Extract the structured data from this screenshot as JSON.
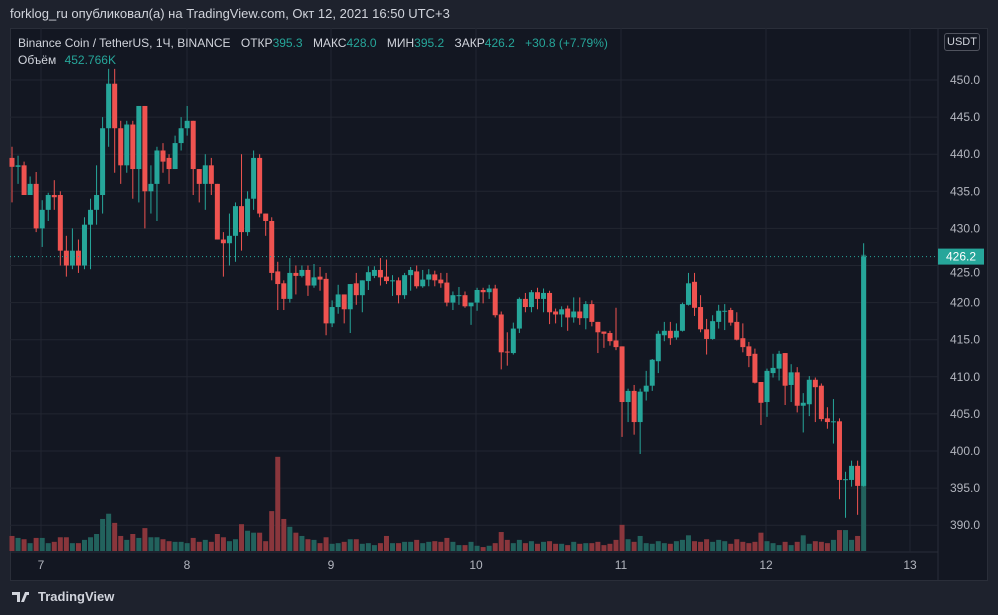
{
  "header": {
    "text": "forklog_ru опубликовал(а) на TradingView.com, Окт 12, 2021 16:50 UTC+3"
  },
  "legend": {
    "symbol": "Binance Coin / TetherUS, 1Ч, BINANCE",
    "open_label": "ОТКР",
    "open": "395.3",
    "high_label": "МАКС",
    "high": "428.0",
    "low_label": "МИН",
    "low": "395.2",
    "close_label": "ЗАКР",
    "close": "426.2",
    "change": "+30.8 (+7.79%)",
    "volume_label": "Объём",
    "volume": "452.766K"
  },
  "currency": "USDT",
  "last_price": "426.2",
  "footer": {
    "brand": "TradingView"
  },
  "colors": {
    "up": "#26a69a",
    "down": "#ef5350",
    "vol_up": "#22625d",
    "vol_down": "#8a363c"
  },
  "chart_data": {
    "type": "candlestick",
    "title": "Binance Coin / TetherUS, 1Ч, BINANCE",
    "interval": "1h",
    "price_ticks": [
      "450.0",
      "445.0",
      "440.0",
      "435.0",
      "430.0",
      "425.0",
      "420.0",
      "415.0",
      "410.0",
      "405.0",
      "400.0",
      "395.0",
      "390.0"
    ],
    "date_ticks": [
      "7",
      "8",
      "9",
      "10",
      "11",
      "12",
      "13"
    ],
    "ylim": [
      387,
      452
    ],
    "volume_unit": "K",
    "ohlc": [
      [
        439.5,
        441,
        433.5,
        438.3
      ],
      [
        438.3,
        439.8,
        436,
        438.5
      ],
      [
        438.5,
        439,
        434.5,
        434.5
      ],
      [
        434.5,
        437,
        434.5,
        436
      ],
      [
        436,
        437.6,
        429.5,
        430
      ],
      [
        430,
        433.8,
        427.5,
        432.5
      ],
      [
        432.5,
        434.8,
        431,
        434.5
      ],
      [
        434.5,
        436.5,
        432.5,
        434.2
      ],
      [
        434.5,
        435,
        425,
        427
      ],
      [
        427,
        429,
        423.5,
        425
      ],
      [
        425,
        430,
        424.5,
        427
      ],
      [
        427,
        428.5,
        424,
        425
      ],
      [
        425,
        431.5,
        424.5,
        430.5
      ],
      [
        430.5,
        434,
        424.5,
        432.5
      ],
      [
        432.5,
        438.5,
        430.5,
        434.5
      ],
      [
        434.5,
        445,
        432,
        443.5
      ],
      [
        443.5,
        451.5,
        441,
        449.5
      ],
      [
        449.5,
        451.5,
        437.5,
        443.5
      ],
      [
        443.5,
        444.5,
        436,
        438.5
      ],
      [
        438.5,
        444.5,
        437.5,
        444
      ],
      [
        444,
        444.5,
        434,
        438
      ],
      [
        438,
        446.5,
        433.5,
        446.5
      ],
      [
        446.5,
        446.5,
        430,
        435
      ],
      [
        435,
        438.5,
        432,
        436
      ],
      [
        436,
        441,
        431,
        440.5
      ],
      [
        440.5,
        441.5,
        437.5,
        439
      ],
      [
        439.5,
        440,
        436,
        438
      ],
      [
        438,
        442.5,
        438,
        441.5
      ],
      [
        441.5,
        445,
        440.5,
        443.5
      ],
      [
        443.5,
        446.5,
        442.5,
        444.5
      ],
      [
        444.5,
        444.5,
        434.5,
        438
      ],
      [
        438,
        438,
        433.5,
        436
      ],
      [
        436,
        440,
        432.5,
        438.5
      ],
      [
        438.5,
        439.5,
        434.5,
        436
      ],
      [
        436,
        436,
        428.5,
        428.5
      ],
      [
        428.5,
        429.5,
        423.5,
        428
      ],
      [
        428,
        432,
        425,
        429
      ],
      [
        429,
        433.5,
        425.5,
        433
      ],
      [
        433,
        440,
        427,
        429.5
      ],
      [
        429.5,
        435,
        429,
        434
      ],
      [
        434,
        440.5,
        432.5,
        439.5
      ],
      [
        439.5,
        440,
        431.5,
        432
      ],
      [
        432,
        432,
        429,
        431
      ],
      [
        431,
        431.5,
        423,
        424
      ],
      [
        424.2,
        425.5,
        419,
        422.5
      ],
      [
        422.6,
        423,
        419,
        420.5
      ],
      [
        420.5,
        426,
        420,
        424
      ],
      [
        424,
        425,
        421.1,
        423.6
      ],
      [
        423.6,
        425,
        423.4,
        424.4
      ],
      [
        424.4,
        425,
        420.9,
        422.3
      ],
      [
        422.3,
        425.2,
        422,
        423.4
      ],
      [
        423.5,
        424.8,
        421.6,
        423.1
      ],
      [
        423.2,
        424,
        415.6,
        417.2
      ],
      [
        417.2,
        420.3,
        416.7,
        419.4
      ],
      [
        419.4,
        422.4,
        418.5,
        421.1
      ],
      [
        421.1,
        421.1,
        417.2,
        419.1
      ],
      [
        419.1,
        422.5,
        415.9,
        422.5
      ],
      [
        422.6,
        424,
        419.7,
        421
      ],
      [
        421,
        423,
        418.7,
        423
      ],
      [
        422.9,
        424.9,
        421.7,
        424.1
      ],
      [
        423.6,
        424.9,
        423.3,
        424.4
      ],
      [
        424.4,
        426,
        422.3,
        423.4
      ],
      [
        423.5,
        425.8,
        422.5,
        422.9
      ],
      [
        423,
        423.7,
        420.9,
        423
      ],
      [
        423,
        423.4,
        419.9,
        421
      ],
      [
        421,
        424,
        420.5,
        423.7
      ],
      [
        423.7,
        424.8,
        421.6,
        424.4
      ],
      [
        424.2,
        425,
        421.9,
        422.2
      ],
      [
        422.2,
        424.4,
        422,
        423.1
      ],
      [
        423.1,
        424.5,
        422.2,
        423.8
      ],
      [
        423.8,
        424.3,
        422.2,
        423
      ],
      [
        423.1,
        424,
        422,
        422.6
      ],
      [
        422.7,
        424,
        419.5,
        420
      ],
      [
        420,
        421.5,
        419,
        421
      ],
      [
        420.9,
        422.1,
        419.7,
        421
      ],
      [
        421,
        421.5,
        419.3,
        419.5
      ],
      [
        419.5,
        420,
        417,
        420
      ],
      [
        420,
        422,
        418.9,
        421.7
      ],
      [
        421.7,
        422,
        419.9,
        421.4
      ],
      [
        421.4,
        422.4,
        420.5,
        421.9
      ],
      [
        421.9,
        422.4,
        418,
        418.3
      ],
      [
        418.4,
        418.8,
        411,
        413.3
      ],
      [
        413.4,
        416,
        411.5,
        413.3
      ],
      [
        413.2,
        417.3,
        413,
        416.5
      ],
      [
        416.5,
        420.7,
        415.9,
        420.5
      ],
      [
        420.5,
        421.3,
        418.7,
        419.4
      ],
      [
        419.4,
        421.7,
        418.7,
        421.4
      ],
      [
        421.4,
        422,
        419.1,
        420.5
      ],
      [
        420.5,
        421.9,
        418.7,
        421.3
      ],
      [
        421.3,
        421.6,
        417.1,
        418.7
      ],
      [
        418.8,
        419.2,
        417.2,
        418.4
      ],
      [
        418.4,
        419.5,
        416.7,
        419.1
      ],
      [
        419.2,
        419.6,
        416.2,
        418
      ],
      [
        418,
        420.7,
        417.3,
        418.8
      ],
      [
        418.8,
        420.7,
        417,
        417.9
      ],
      [
        417.9,
        420.2,
        416.4,
        419.8
      ],
      [
        419.8,
        420.3,
        416.8,
        417.4
      ],
      [
        417.4,
        417.4,
        413.2,
        416
      ],
      [
        416.1,
        416.1,
        413.9,
        415.8
      ],
      [
        415.9,
        416.2,
        414.2,
        414.8
      ],
      [
        414.9,
        419.3,
        413.6,
        414
      ],
      [
        414.1,
        414.1,
        401.9,
        406.6
      ],
      [
        406.6,
        408.4,
        403.9,
        408.1
      ],
      [
        408.1,
        408.9,
        402.2,
        403.9
      ],
      [
        403.9,
        408.4,
        399.6,
        408
      ],
      [
        408,
        410.8,
        406.8,
        408.8
      ],
      [
        408.8,
        412.4,
        408.1,
        412.3
      ],
      [
        412.1,
        416.2,
        410.5,
        415.8
      ],
      [
        415.6,
        417.4,
        414.8,
        416.2
      ],
      [
        416.2,
        417.4,
        414.3,
        415.2
      ],
      [
        415.3,
        417.2,
        415,
        416.2
      ],
      [
        416.2,
        420,
        416.1,
        419.8
      ],
      [
        419.7,
        424,
        419.6,
        422.6
      ],
      [
        422.8,
        424,
        418.2,
        419.3
      ],
      [
        419.4,
        421,
        416,
        416.4
      ],
      [
        416.4,
        417.8,
        413,
        415.1
      ],
      [
        415.1,
        418.3,
        415,
        417.5
      ],
      [
        417.4,
        419.7,
        416.5,
        418.9
      ],
      [
        418.9,
        419.8,
        416.3,
        418.9
      ],
      [
        419,
        419.3,
        416.9,
        417.3
      ],
      [
        417.4,
        418.7,
        414.9,
        415
      ],
      [
        415.2,
        417.2,
        413.3,
        414
      ],
      [
        414.1,
        414.7,
        411.3,
        412.8
      ],
      [
        413.1,
        413.8,
        409.1,
        409.2
      ],
      [
        409.3,
        409.3,
        403.5,
        406.5
      ],
      [
        406.6,
        411.1,
        404.6,
        410.8
      ],
      [
        410.5,
        413.1,
        409.9,
        411.2
      ],
      [
        411.1,
        413.5,
        409.5,
        413.1
      ],
      [
        413.2,
        413.2,
        406.2,
        408.8
      ],
      [
        408.9,
        411.7,
        406.6,
        410.6
      ],
      [
        410.6,
        411.3,
        405.2,
        406.1
      ],
      [
        406.1,
        407.8,
        402.5,
        406.5
      ],
      [
        406.3,
        410.1,
        404.7,
        409.6
      ],
      [
        409.6,
        409.9,
        403.9,
        408.6
      ],
      [
        408.8,
        409.1,
        404,
        404.3
      ],
      [
        404.4,
        405.9,
        403,
        403.9
      ],
      [
        404,
        407,
        401,
        404
      ],
      [
        404,
        404.4,
        393.5,
        396.1
      ],
      [
        396.2,
        397.2,
        391,
        396.2
      ],
      [
        396.1,
        398.7,
        395.2,
        398
      ],
      [
        398,
        398.7,
        391.4,
        395.3
      ],
      [
        395.3,
        428,
        395.2,
        426.2
      ]
    ],
    "volume": [
      23,
      20,
      18,
      12,
      20,
      20,
      12,
      14,
      21,
      21,
      12,
      12,
      17,
      21,
      26,
      49,
      57,
      43,
      23,
      17,
      26,
      20,
      35,
      21,
      21,
      18,
      15,
      14,
      14,
      12,
      20,
      14,
      17,
      14,
      26,
      21,
      15,
      18,
      41,
      31,
      28,
      28,
      15,
      61,
      144,
      49,
      37,
      28,
      23,
      18,
      17,
      12,
      21,
      11,
      12,
      14,
      18,
      18,
      11,
      12,
      9,
      12,
      23,
      12,
      12,
      14,
      14,
      17,
      12,
      14,
      15,
      14,
      20,
      14,
      9,
      9,
      14,
      8,
      6,
      8,
      12,
      29,
      17,
      12,
      17,
      12,
      15,
      11,
      14,
      15,
      11,
      11,
      9,
      14,
      11,
      12,
      12,
      14,
      9,
      11,
      17,
      40,
      18,
      14,
      23,
      12,
      11,
      15,
      12,
      11,
      15,
      17,
      24,
      15,
      14,
      18,
      14,
      17,
      15,
      11,
      18,
      14,
      12,
      14,
      28,
      15,
      12,
      9,
      14,
      9,
      14,
      24,
      11,
      15,
      14,
      12,
      17,
      32,
      32,
      17,
      23,
      453
    ]
  }
}
